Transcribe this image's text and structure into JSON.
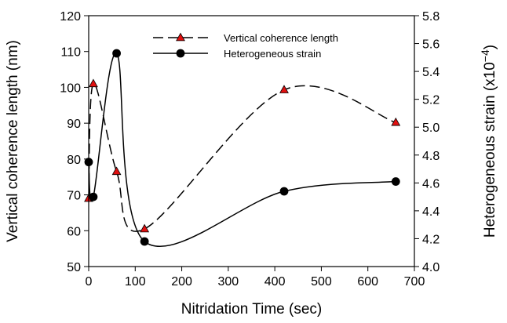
{
  "chart_data": {
    "type": "line",
    "xlabel": "Nitridation Time (sec)",
    "ylabel_left": "Vertical coherence length (nm)",
    "ylabel_right_prefix": "Heterogeneous strain (x10",
    "ylabel_right_exponent": "−4",
    "ylabel_right_suffix": ")",
    "xlim": [
      0,
      700
    ],
    "ylim_left": [
      50,
      120
    ],
    "ylim_right": [
      4.0,
      5.8
    ],
    "x_ticks": [
      "0",
      "100",
      "200",
      "300",
      "400",
      "500",
      "600",
      "700"
    ],
    "y_left_ticks": [
      "50",
      "60",
      "70",
      "80",
      "90",
      "100",
      "110",
      "120"
    ],
    "y_right_ticks": [
      "4.0",
      "4.2",
      "4.4",
      "4.6",
      "4.8",
      "5.0",
      "5.2",
      "5.4",
      "5.6",
      "5.8"
    ],
    "legend_position": "top-center",
    "series": [
      {
        "name": "Vertical coherence length",
        "axis": "left",
        "marker": "triangle",
        "line_style": "dashed",
        "marker_color": "#e01010",
        "x": [
          0,
          10,
          60,
          120,
          420,
          660
        ],
        "y": [
          69,
          101,
          76.5,
          60.5,
          99.3,
          90.2
        ]
      },
      {
        "name": "Heterogeneous strain",
        "axis": "right",
        "marker": "circle",
        "line_style": "solid",
        "marker_color": "#000000",
        "x": [
          0,
          10,
          60,
          120,
          420,
          660
        ],
        "y": [
          4.75,
          4.5,
          5.53,
          4.18,
          4.54,
          4.61
        ]
      }
    ]
  }
}
